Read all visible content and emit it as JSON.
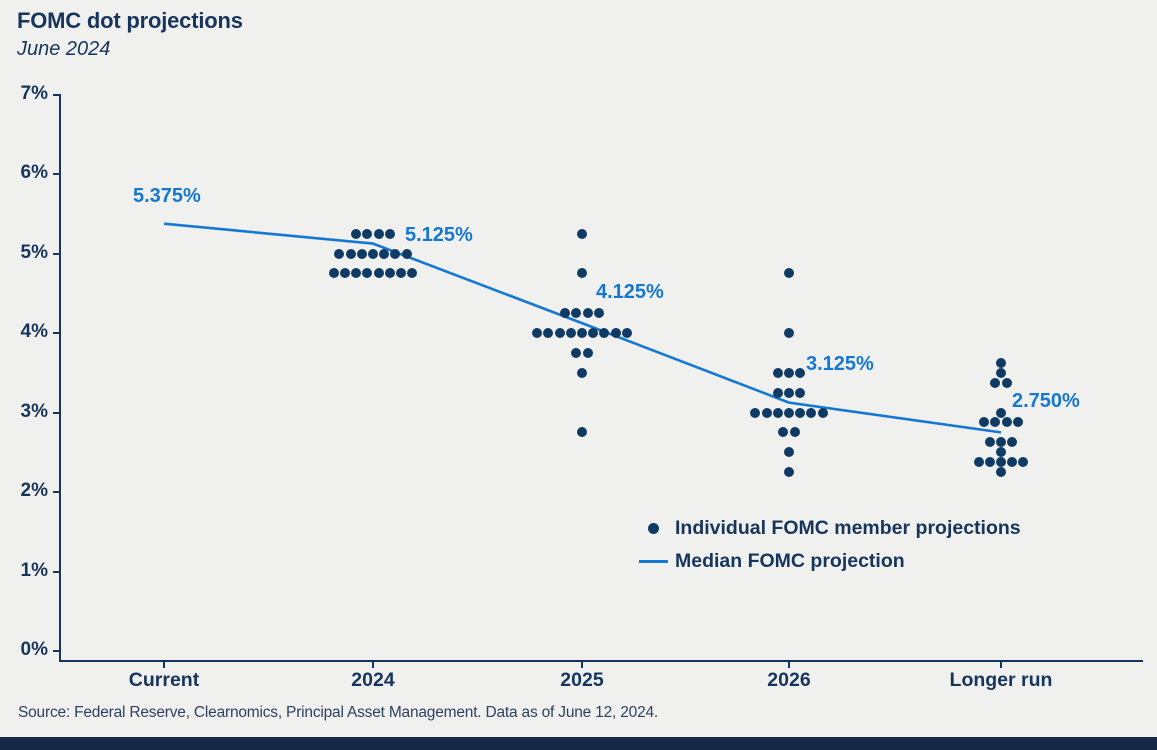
{
  "header": {
    "title": "FOMC dot projections",
    "subtitle": "June 2024"
  },
  "colors": {
    "accent_blue": "#1478d2",
    "dot_navy": "#0e3a64",
    "text_navy": "#17355c",
    "background": "#f0f0ee",
    "footer_bar": "#142946"
  },
  "chart_data": {
    "type": "scatter",
    "title": "FOMC dot projections",
    "subtitle": "June 2024",
    "categories": [
      "Current",
      "2024",
      "2025",
      "2026",
      "Longer run"
    ],
    "ylim": [
      0,
      7
    ],
    "ytick_labels": [
      "0%",
      "1%",
      "2%",
      "3%",
      "4%",
      "5%",
      "6%",
      "7%"
    ],
    "grid": false,
    "legend_position": "lower right inside plot",
    "series": [
      {
        "name": "Individual FOMC member projections",
        "type": "dots",
        "groups": [
          {
            "category": "2024",
            "rows": [
              {
                "value": 5.25,
                "count": 4
              },
              {
                "value": 5.0,
                "count": 7
              },
              {
                "value": 4.75,
                "count": 8
              }
            ]
          },
          {
            "category": "2025",
            "rows": [
              {
                "value": 5.25,
                "count": 1
              },
              {
                "value": 4.75,
                "count": 1
              },
              {
                "value": 4.25,
                "count": 4
              },
              {
                "value": 4.0,
                "count": 9
              },
              {
                "value": 3.75,
                "count": 2
              },
              {
                "value": 3.5,
                "count": 1
              },
              {
                "value": 2.75,
                "count": 1
              }
            ]
          },
          {
            "category": "2026",
            "rows": [
              {
                "value": 4.75,
                "count": 1
              },
              {
                "value": 4.0,
                "count": 1
              },
              {
                "value": 3.5,
                "count": 3
              },
              {
                "value": 3.25,
                "count": 3
              },
              {
                "value": 3.0,
                "count": 7
              },
              {
                "value": 2.75,
                "count": 2
              },
              {
                "value": 2.5,
                "count": 1
              },
              {
                "value": 2.25,
                "count": 1
              }
            ]
          },
          {
            "category": "Longer run",
            "rows": [
              {
                "value": 3.625,
                "count": 1
              },
              {
                "value": 3.5,
                "count": 1
              },
              {
                "value": 3.375,
                "count": 2
              },
              {
                "value": 3.0,
                "count": 1
              },
              {
                "value": 2.875,
                "count": 4
              },
              {
                "value": 2.625,
                "count": 3
              },
              {
                "value": 2.5,
                "count": 1
              },
              {
                "value": 2.375,
                "count": 5
              },
              {
                "value": 2.25,
                "count": 1
              }
            ]
          }
        ]
      },
      {
        "name": "Median FOMC projection",
        "type": "line",
        "x": [
          "Current",
          "2024",
          "2025",
          "2026",
          "Longer run"
        ],
        "values": [
          5.375,
          5.125,
          4.125,
          3.125,
          2.75
        ],
        "point_labels": [
          "5.375%",
          "5.125%",
          "4.125%",
          "3.125%",
          "2.750%"
        ]
      }
    ]
  },
  "footer": {
    "source": "Source: Federal Reserve, Clearnomics, Principal Asset Management. Data as of June 12, 2024."
  }
}
